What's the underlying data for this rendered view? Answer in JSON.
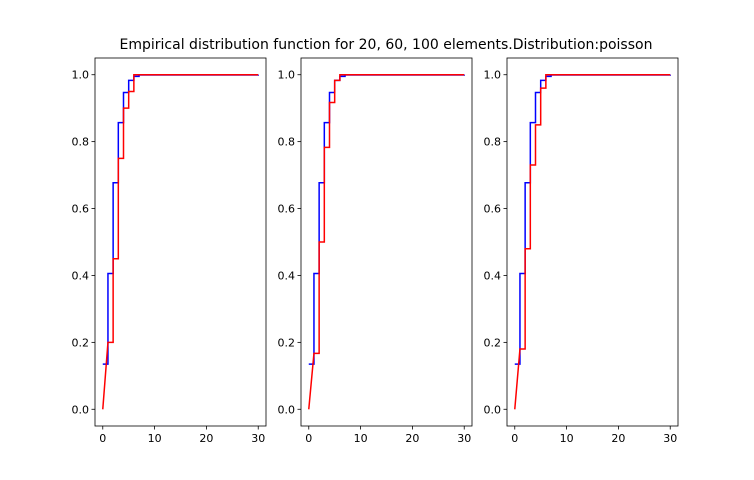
{
  "figure": {
    "title": "Empirical distribution function for 20, 60, 100 elements.Distribution:poisson"
  },
  "chart_data": [
    {
      "type": "line",
      "xlim": [
        -1.5,
        31.5
      ],
      "ylim": [
        -0.05,
        1.05
      ],
      "xticks": [
        "0",
        "10",
        "20",
        "30"
      ],
      "yticks": [
        "0.0",
        "0.2",
        "0.4",
        "0.6",
        "0.8",
        "1.0"
      ],
      "grid": false,
      "series": [
        {
          "color": "#0000ff",
          "style": "step",
          "x": [
            0,
            1,
            2,
            3,
            4,
            5,
            6,
            7,
            30
          ],
          "y": [
            0.135,
            0.406,
            0.677,
            0.857,
            0.947,
            0.983,
            0.995,
            0.999,
            1.0
          ]
        },
        {
          "color": "#ff0000",
          "style": "step-sample",
          "x": [
            0,
            1,
            2,
            3,
            4,
            5,
            6,
            30
          ],
          "y": [
            0.0,
            0.2,
            0.45,
            0.75,
            0.9,
            0.95,
            1.0,
            1.0
          ]
        }
      ]
    },
    {
      "type": "line",
      "xlim": [
        -1.5,
        31.5
      ],
      "ylim": [
        -0.05,
        1.05
      ],
      "xticks": [
        "0",
        "10",
        "20",
        "30"
      ],
      "yticks": [
        "0.0",
        "0.2",
        "0.4",
        "0.6",
        "0.8",
        "1.0"
      ],
      "grid": false,
      "series": [
        {
          "color": "#0000ff",
          "style": "step",
          "x": [
            0,
            1,
            2,
            3,
            4,
            5,
            6,
            7,
            30
          ],
          "y": [
            0.135,
            0.406,
            0.677,
            0.857,
            0.947,
            0.983,
            0.995,
            0.999,
            1.0
          ]
        },
        {
          "color": "#ff0000",
          "style": "step-sample",
          "x": [
            0,
            1,
            2,
            3,
            4,
            5,
            6,
            30
          ],
          "y": [
            0.0,
            0.167,
            0.5,
            0.783,
            0.917,
            0.983,
            1.0,
            1.0
          ]
        }
      ]
    },
    {
      "type": "line",
      "xlim": [
        -1.5,
        31.5
      ],
      "ylim": [
        -0.05,
        1.05
      ],
      "xticks": [
        "0",
        "10",
        "20",
        "30"
      ],
      "yticks": [
        "0.0",
        "0.2",
        "0.4",
        "0.6",
        "0.8",
        "1.0"
      ],
      "grid": false,
      "series": [
        {
          "color": "#0000ff",
          "style": "step",
          "x": [
            0,
            1,
            2,
            3,
            4,
            5,
            6,
            7,
            30
          ],
          "y": [
            0.135,
            0.406,
            0.677,
            0.857,
            0.947,
            0.983,
            0.995,
            0.999,
            1.0
          ]
        },
        {
          "color": "#ff0000",
          "style": "step-sample",
          "x": [
            0,
            1,
            2,
            3,
            4,
            5,
            6,
            30
          ],
          "y": [
            0.0,
            0.18,
            0.48,
            0.73,
            0.85,
            0.96,
            1.0,
            1.0
          ]
        }
      ]
    }
  ]
}
